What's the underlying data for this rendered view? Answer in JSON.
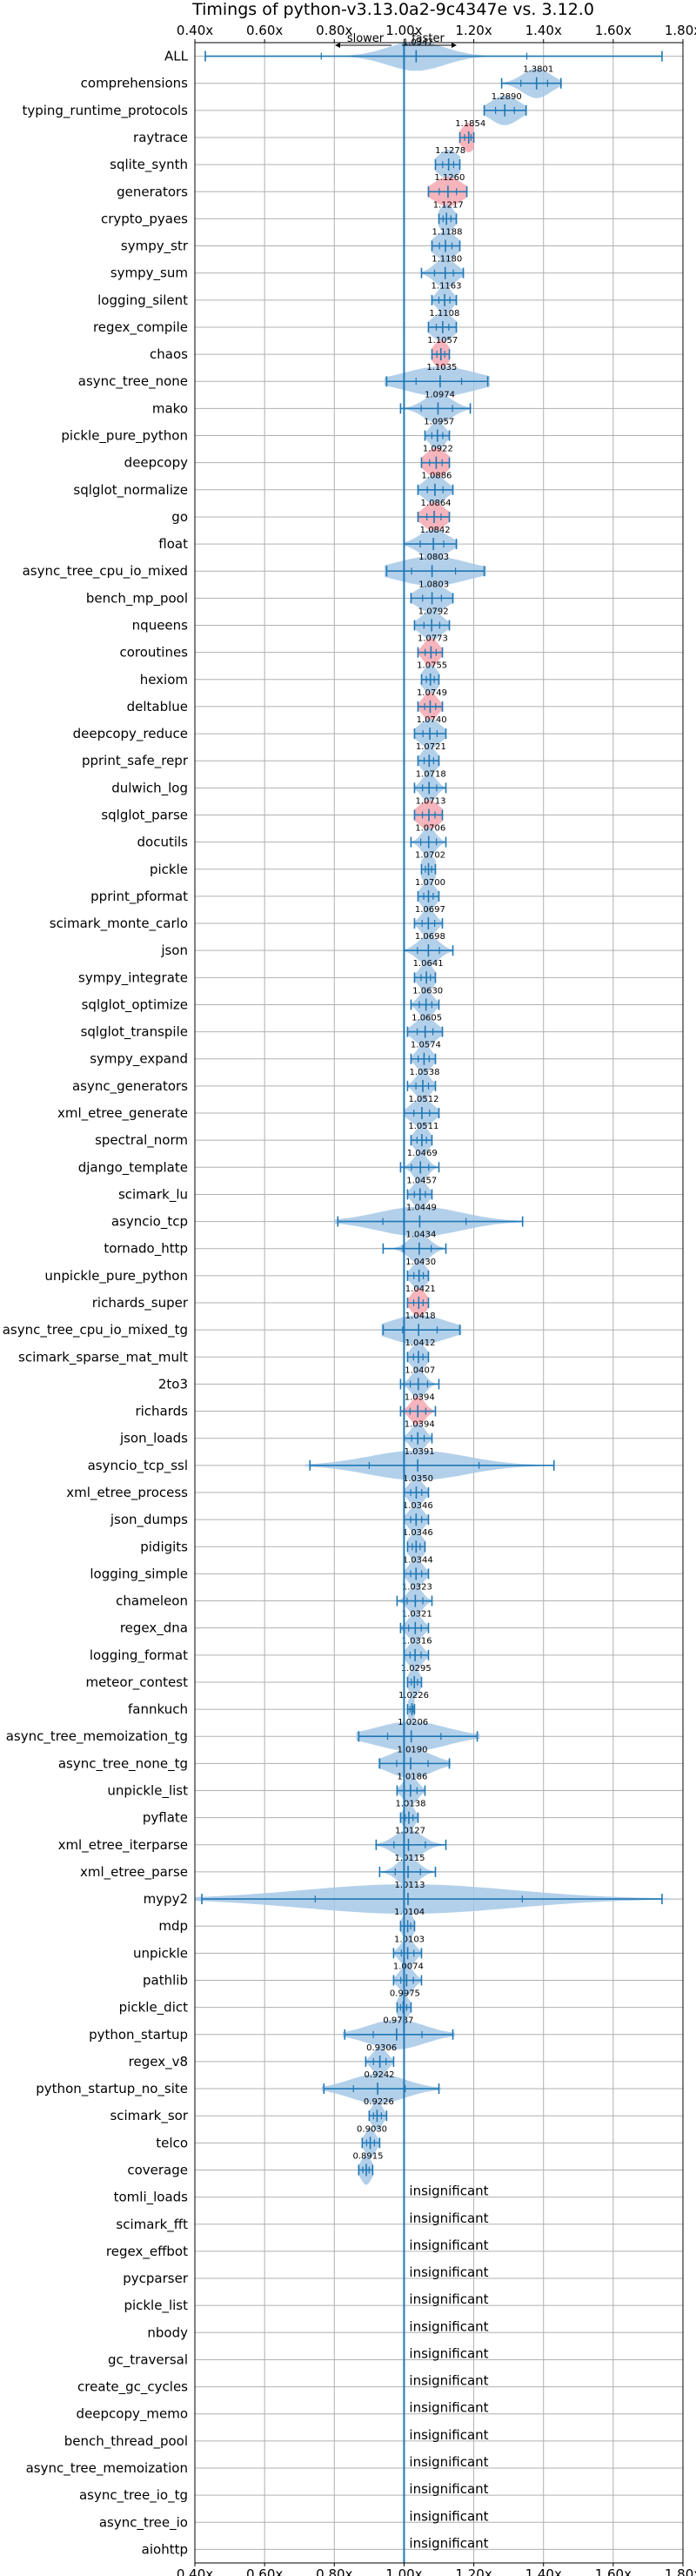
{
  "chart_data": {
    "type": "violin",
    "title": "Timings of python-v3.13.0a2-9c4347e vs. 3.12.0",
    "direction_left": "slower",
    "direction_right": "faster",
    "xlim": [
      0.4,
      1.8
    ],
    "ticks": [
      0.4,
      0.6,
      0.8,
      1.0,
      1.2,
      1.4,
      1.6,
      1.8
    ],
    "tick_labels": [
      "0.40x",
      "0.60x",
      "0.80x",
      "1.00x",
      "1.20x",
      "1.40x",
      "1.60x",
      "1.80x"
    ],
    "colors": {
      "normal": "#1f77b4",
      "violin": "#a6c8e6",
      "highlight": "#f4a7b0",
      "grid": "#b0b0b0",
      "frame": "#000000"
    },
    "insignificant_text": "insignificant",
    "rows": [
      {
        "name": "ALL",
        "value": 1.0347,
        "label": "1.0347",
        "min": 0.43,
        "max": 1.74,
        "spread": 0.08,
        "hl": false
      },
      {
        "name": "comprehensions",
        "value": 1.3801,
        "label": "1.3801",
        "min": 1.28,
        "max": 1.45,
        "spread": 0.04,
        "hl": false
      },
      {
        "name": "typing_runtime_protocols",
        "value": 1.289,
        "label": "1.2890",
        "min": 1.23,
        "max": 1.35,
        "spread": 0.04,
        "hl": false
      },
      {
        "name": "raytrace",
        "value": 1.1854,
        "label": "1.1854",
        "min": 1.16,
        "max": 1.2,
        "spread": 0.02,
        "hl": true
      },
      {
        "name": "sqlite_synth",
        "value": 1.1278,
        "label": "1.1278",
        "min": 1.09,
        "max": 1.16,
        "spread": 0.03,
        "hl": false
      },
      {
        "name": "generators",
        "value": 1.126,
        "label": "1.1260",
        "min": 1.07,
        "max": 1.18,
        "spread": 0.04,
        "hl": true
      },
      {
        "name": "crypto_pyaes",
        "value": 1.1217,
        "label": "1.1217",
        "min": 1.1,
        "max": 1.15,
        "spread": 0.02,
        "hl": false
      },
      {
        "name": "sympy_str",
        "value": 1.1188,
        "label": "1.1188",
        "min": 1.08,
        "max": 1.16,
        "spread": 0.03,
        "hl": false
      },
      {
        "name": "sympy_sum",
        "value": 1.118,
        "label": "1.1180",
        "min": 1.05,
        "max": 1.17,
        "spread": 0.03,
        "hl": false
      },
      {
        "name": "logging_silent",
        "value": 1.1163,
        "label": "1.1163",
        "min": 1.08,
        "max": 1.15,
        "spread": 0.02,
        "hl": false
      },
      {
        "name": "regex_compile",
        "value": 1.1108,
        "label": "1.1108",
        "min": 1.07,
        "max": 1.15,
        "spread": 0.03,
        "hl": false
      },
      {
        "name": "chaos",
        "value": 1.1057,
        "label": "1.1057",
        "min": 1.08,
        "max": 1.13,
        "spread": 0.02,
        "hl": true
      },
      {
        "name": "async_tree_none",
        "value": 1.1035,
        "label": "1.1035",
        "min": 0.95,
        "max": 1.24,
        "spread": 0.1,
        "hl": false
      },
      {
        "name": "mako",
        "value": 1.0974,
        "label": "1.0974",
        "min": 0.99,
        "max": 1.19,
        "spread": 0.04,
        "hl": false
      },
      {
        "name": "pickle_pure_python",
        "value": 1.0957,
        "label": "1.0957",
        "min": 1.06,
        "max": 1.13,
        "spread": 0.02,
        "hl": false
      },
      {
        "name": "deepcopy",
        "value": 1.0922,
        "label": "1.0922",
        "min": 1.05,
        "max": 1.13,
        "spread": 0.03,
        "hl": true
      },
      {
        "name": "sqlglot_normalize",
        "value": 1.0886,
        "label": "1.0886",
        "min": 1.04,
        "max": 1.14,
        "spread": 0.03,
        "hl": false
      },
      {
        "name": "go",
        "value": 1.0864,
        "label": "1.0864",
        "min": 1.04,
        "max": 1.13,
        "spread": 0.03,
        "hl": true
      },
      {
        "name": "float",
        "value": 1.0842,
        "label": "1.0842",
        "min": 1.0,
        "max": 1.15,
        "spread": 0.04,
        "hl": false
      },
      {
        "name": "async_tree_cpu_io_mixed",
        "value": 1.0803,
        "label": "1.0803",
        "min": 0.95,
        "max": 1.23,
        "spread": 0.1,
        "hl": false
      },
      {
        "name": "bench_mp_pool",
        "value": 1.0803,
        "label": "1.0803",
        "min": 1.02,
        "max": 1.14,
        "spread": 0.04,
        "hl": false
      },
      {
        "name": "nqueens",
        "value": 1.0792,
        "label": "1.0792",
        "min": 1.03,
        "max": 1.13,
        "spread": 0.03,
        "hl": false
      },
      {
        "name": "coroutines",
        "value": 1.0773,
        "label": "1.0773",
        "min": 1.04,
        "max": 1.11,
        "spread": 0.02,
        "hl": true
      },
      {
        "name": "hexiom",
        "value": 1.0755,
        "label": "1.0755",
        "min": 1.05,
        "max": 1.1,
        "spread": 0.02,
        "hl": false
      },
      {
        "name": "deltablue",
        "value": 1.0749,
        "label": "1.0749",
        "min": 1.04,
        "max": 1.11,
        "spread": 0.02,
        "hl": true
      },
      {
        "name": "deepcopy_reduce",
        "value": 1.074,
        "label": "1.0740",
        "min": 1.03,
        "max": 1.12,
        "spread": 0.03,
        "hl": false
      },
      {
        "name": "pprint_safe_repr",
        "value": 1.0721,
        "label": "1.0721",
        "min": 1.04,
        "max": 1.1,
        "spread": 0.02,
        "hl": false
      },
      {
        "name": "dulwich_log",
        "value": 1.0718,
        "label": "1.0718",
        "min": 1.03,
        "max": 1.12,
        "spread": 0.02,
        "hl": false
      },
      {
        "name": "sqlglot_parse",
        "value": 1.0713,
        "label": "1.0713",
        "min": 1.03,
        "max": 1.11,
        "spread": 0.03,
        "hl": true
      },
      {
        "name": "docutils",
        "value": 1.0706,
        "label": "1.0706",
        "min": 1.02,
        "max": 1.12,
        "spread": 0.02,
        "hl": false
      },
      {
        "name": "pickle",
        "value": 1.0702,
        "label": "1.0702",
        "min": 1.05,
        "max": 1.09,
        "spread": 0.02,
        "hl": false
      },
      {
        "name": "pprint_pformat",
        "value": 1.07,
        "label": "1.0700",
        "min": 1.04,
        "max": 1.1,
        "spread": 0.02,
        "hl": false
      },
      {
        "name": "scimark_monte_carlo",
        "value": 1.0697,
        "label": "1.0697",
        "min": 1.03,
        "max": 1.11,
        "spread": 0.02,
        "hl": false
      },
      {
        "name": "json",
        "value": 1.0698,
        "label": "1.0698",
        "min": 1.0,
        "max": 1.14,
        "spread": 0.03,
        "hl": false
      },
      {
        "name": "sympy_integrate",
        "value": 1.0641,
        "label": "1.0641",
        "min": 1.03,
        "max": 1.09,
        "spread": 0.02,
        "hl": false
      },
      {
        "name": "sqlglot_optimize",
        "value": 1.063,
        "label": "1.0630",
        "min": 1.02,
        "max": 1.1,
        "spread": 0.02,
        "hl": false
      },
      {
        "name": "sqlglot_transpile",
        "value": 1.0605,
        "label": "1.0605",
        "min": 1.01,
        "max": 1.11,
        "spread": 0.03,
        "hl": false
      },
      {
        "name": "sympy_expand",
        "value": 1.0574,
        "label": "1.0574",
        "min": 1.02,
        "max": 1.09,
        "spread": 0.02,
        "hl": false
      },
      {
        "name": "async_generators",
        "value": 1.0538,
        "label": "1.0538",
        "min": 1.01,
        "max": 1.09,
        "spread": 0.02,
        "hl": false
      },
      {
        "name": "xml_etree_generate",
        "value": 1.0512,
        "label": "1.0512",
        "min": 1.0,
        "max": 1.1,
        "spread": 0.03,
        "hl": false
      },
      {
        "name": "spectral_norm",
        "value": 1.0511,
        "label": "1.0511",
        "min": 1.02,
        "max": 1.08,
        "spread": 0.02,
        "hl": false
      },
      {
        "name": "django_template",
        "value": 1.0469,
        "label": "1.0469",
        "min": 0.99,
        "max": 1.1,
        "spread": 0.02,
        "hl": false
      },
      {
        "name": "scimark_lu",
        "value": 1.0457,
        "label": "1.0457",
        "min": 1.01,
        "max": 1.08,
        "spread": 0.02,
        "hl": false
      },
      {
        "name": "asyncio_tcp",
        "value": 1.0449,
        "label": "1.0449",
        "min": 0.81,
        "max": 1.34,
        "spread": 0.12,
        "hl": false
      },
      {
        "name": "tornado_http",
        "value": 1.0434,
        "label": "1.0434",
        "min": 0.94,
        "max": 1.12,
        "spread": 0.03,
        "hl": false
      },
      {
        "name": "unpickle_pure_python",
        "value": 1.043,
        "label": "1.0430",
        "min": 1.01,
        "max": 1.07,
        "spread": 0.02,
        "hl": false
      },
      {
        "name": "richards_super",
        "value": 1.0421,
        "label": "1.0421",
        "min": 1.01,
        "max": 1.07,
        "spread": 0.02,
        "hl": true
      },
      {
        "name": "async_tree_cpu_io_mixed_tg",
        "value": 1.0418,
        "label": "1.0418",
        "min": 0.94,
        "max": 1.16,
        "spread": 0.08,
        "hl": false
      },
      {
        "name": "scimark_sparse_mat_mult",
        "value": 1.0412,
        "label": "1.0412",
        "min": 1.01,
        "max": 1.07,
        "spread": 0.02,
        "hl": false
      },
      {
        "name": "2to3",
        "value": 1.0407,
        "label": "1.0407",
        "min": 0.99,
        "max": 1.1,
        "spread": 0.02,
        "hl": false
      },
      {
        "name": "richards",
        "value": 1.0394,
        "label": "1.0394",
        "min": 0.99,
        "max": 1.09,
        "spread": 0.02,
        "hl": true
      },
      {
        "name": "json_loads",
        "value": 1.0394,
        "label": "1.0394",
        "min": 1.0,
        "max": 1.08,
        "spread": 0.02,
        "hl": false
      },
      {
        "name": "asyncio_tcp_ssl",
        "value": 1.0391,
        "label": "1.0391",
        "min": 0.73,
        "max": 1.43,
        "spread": 0.14,
        "hl": false
      },
      {
        "name": "xml_etree_process",
        "value": 1.035,
        "label": "1.0350",
        "min": 1.0,
        "max": 1.07,
        "spread": 0.02,
        "hl": false
      },
      {
        "name": "json_dumps",
        "value": 1.0346,
        "label": "1.0346",
        "min": 1.0,
        "max": 1.07,
        "spread": 0.02,
        "hl": false
      },
      {
        "name": "pidigits",
        "value": 1.0346,
        "label": "1.0346",
        "min": 1.01,
        "max": 1.06,
        "spread": 0.02,
        "hl": false
      },
      {
        "name": "logging_simple",
        "value": 1.0344,
        "label": "1.0344",
        "min": 1.0,
        "max": 1.07,
        "spread": 0.02,
        "hl": false
      },
      {
        "name": "chameleon",
        "value": 1.0323,
        "label": "1.0323",
        "min": 0.98,
        "max": 1.08,
        "spread": 0.02,
        "hl": false
      },
      {
        "name": "regex_dna",
        "value": 1.0321,
        "label": "1.0321",
        "min": 0.99,
        "max": 1.07,
        "spread": 0.02,
        "hl": false
      },
      {
        "name": "logging_format",
        "value": 1.0316,
        "label": "1.0316",
        "min": 1.0,
        "max": 1.07,
        "spread": 0.02,
        "hl": false
      },
      {
        "name": "meteor_contest",
        "value": 1.0295,
        "label": "1.0295",
        "min": 1.01,
        "max": 1.05,
        "spread": 0.015,
        "hl": false
      },
      {
        "name": "fannkuch",
        "value": 1.0226,
        "label": "1.0226",
        "min": 1.01,
        "max": 1.03,
        "spread": 0.01,
        "hl": false
      },
      {
        "name": "async_tree_memoization_tg",
        "value": 1.0206,
        "label": "1.0206",
        "min": 0.87,
        "max": 1.21,
        "spread": 0.1,
        "hl": false
      },
      {
        "name": "async_tree_none_tg",
        "value": 1.019,
        "label": "1.0190",
        "min": 0.93,
        "max": 1.13,
        "spread": 0.06,
        "hl": false
      },
      {
        "name": "unpickle_list",
        "value": 1.0186,
        "label": "1.0186",
        "min": 0.98,
        "max": 1.06,
        "spread": 0.02,
        "hl": false
      },
      {
        "name": "pyflate",
        "value": 1.0138,
        "label": "1.0138",
        "min": 0.99,
        "max": 1.04,
        "spread": 0.015,
        "hl": false
      },
      {
        "name": "xml_etree_iterparse",
        "value": 1.0127,
        "label": "1.0127",
        "min": 0.92,
        "max": 1.12,
        "spread": 0.04,
        "hl": false
      },
      {
        "name": "xml_etree_parse",
        "value": 1.0115,
        "label": "1.0115",
        "min": 0.93,
        "max": 1.09,
        "spread": 0.03,
        "hl": false
      },
      {
        "name": "mypy2",
        "value": 1.0113,
        "label": "1.0113",
        "min": 0.42,
        "max": 1.74,
        "spread": 0.3,
        "hl": false
      },
      {
        "name": "mdp",
        "value": 1.0104,
        "label": "1.0104",
        "min": 0.99,
        "max": 1.03,
        "spread": 0.015,
        "hl": false
      },
      {
        "name": "unpickle",
        "value": 1.0103,
        "label": "1.0103",
        "min": 0.97,
        "max": 1.05,
        "spread": 0.02,
        "hl": false
      },
      {
        "name": "pathlib",
        "value": 1.0074,
        "label": "1.0074",
        "min": 0.97,
        "max": 1.05,
        "spread": 0.02,
        "hl": false
      },
      {
        "name": "pickle_dict",
        "value": 0.9975,
        "label": "0.9975",
        "min": 0.98,
        "max": 1.02,
        "spread": 0.015,
        "hl": false
      },
      {
        "name": "python_startup",
        "value": 0.9787,
        "label": "0.9787",
        "min": 0.83,
        "max": 1.14,
        "spread": 0.08,
        "hl": false
      },
      {
        "name": "regex_v8",
        "value": 0.9306,
        "label": "0.9306",
        "min": 0.89,
        "max": 0.97,
        "spread": 0.02,
        "hl": false
      },
      {
        "name": "python_startup_no_site",
        "value": 0.9242,
        "label": "0.9242",
        "min": 0.77,
        "max": 1.1,
        "spread": 0.08,
        "hl": false
      },
      {
        "name": "scimark_sor",
        "value": 0.9226,
        "label": "0.9226",
        "min": 0.9,
        "max": 0.95,
        "spread": 0.015,
        "hl": false
      },
      {
        "name": "telco",
        "value": 0.903,
        "label": "0.9030",
        "min": 0.88,
        "max": 0.93,
        "spread": 0.015,
        "hl": false
      },
      {
        "name": "coverage",
        "value": 0.8915,
        "label": "0.8915",
        "min": 0.87,
        "max": 0.91,
        "spread": 0.015,
        "hl": false
      },
      {
        "name": "tomli_loads",
        "value": null,
        "label": "",
        "min": null,
        "max": null,
        "spread": null,
        "hl": false
      },
      {
        "name": "scimark_fft",
        "value": null,
        "label": "",
        "min": null,
        "max": null,
        "spread": null,
        "hl": false
      },
      {
        "name": "regex_effbot",
        "value": null,
        "label": "",
        "min": null,
        "max": null,
        "spread": null,
        "hl": false
      },
      {
        "name": "pycparser",
        "value": null,
        "label": "",
        "min": null,
        "max": null,
        "spread": null,
        "hl": false
      },
      {
        "name": "pickle_list",
        "value": null,
        "label": "",
        "min": null,
        "max": null,
        "spread": null,
        "hl": false
      },
      {
        "name": "nbody",
        "value": null,
        "label": "",
        "min": null,
        "max": null,
        "spread": null,
        "hl": false
      },
      {
        "name": "gc_traversal",
        "value": null,
        "label": "",
        "min": null,
        "max": null,
        "spread": null,
        "hl": false
      },
      {
        "name": "create_gc_cycles",
        "value": null,
        "label": "",
        "min": null,
        "max": null,
        "spread": null,
        "hl": false
      },
      {
        "name": "deepcopy_memo",
        "value": null,
        "label": "",
        "min": null,
        "max": null,
        "spread": null,
        "hl": false
      },
      {
        "name": "bench_thread_pool",
        "value": null,
        "label": "",
        "min": null,
        "max": null,
        "spread": null,
        "hl": false
      },
      {
        "name": "async_tree_memoization",
        "value": null,
        "label": "",
        "min": null,
        "max": null,
        "spread": null,
        "hl": false
      },
      {
        "name": "async_tree_io_tg",
        "value": null,
        "label": "",
        "min": null,
        "max": null,
        "spread": null,
        "hl": false
      },
      {
        "name": "async_tree_io",
        "value": null,
        "label": "",
        "min": null,
        "max": null,
        "spread": null,
        "hl": false
      },
      {
        "name": "aiohttp",
        "value": null,
        "label": "",
        "min": null,
        "max": null,
        "spread": null,
        "hl": false
      }
    ]
  }
}
